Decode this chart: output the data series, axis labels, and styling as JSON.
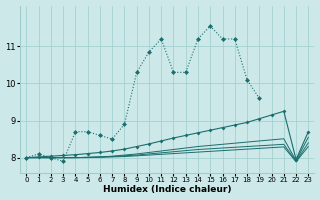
{
  "xlabel": "Humidex (Indice chaleur)",
  "background_color": "#cce8e8",
  "grid_color": "#9ecece",
  "line_color": "#1a6e6e",
  "x_values": [
    0,
    1,
    2,
    3,
    4,
    5,
    6,
    7,
    8,
    9,
    10,
    11,
    12,
    13,
    14,
    15,
    16,
    17,
    18,
    19,
    20,
    21,
    22,
    23
  ],
  "line_main": [
    8.0,
    8.1,
    8.0,
    7.9,
    8.7,
    8.7,
    8.6,
    8.5,
    8.9,
    10.3,
    10.85,
    11.2,
    10.3,
    10.3,
    11.2,
    11.55,
    11.2,
    11.2,
    10.1,
    9.6,
    null,
    null,
    null,
    null
  ],
  "line_slope": [
    8.0,
    8.02,
    8.04,
    8.06,
    8.08,
    8.11,
    8.14,
    8.18,
    8.23,
    8.3,
    8.37,
    8.45,
    8.53,
    8.6,
    8.67,
    8.74,
    8.81,
    8.88,
    8.95,
    9.05,
    9.15,
    9.25,
    7.95,
    8.7
  ],
  "line_flat1": [
    8.0,
    8.0,
    8.0,
    8.0,
    8.0,
    8.01,
    8.02,
    8.04,
    8.07,
    8.1,
    8.14,
    8.18,
    8.22,
    8.26,
    8.3,
    8.33,
    8.36,
    8.39,
    8.42,
    8.45,
    8.48,
    8.51,
    7.92,
    8.55
  ],
  "line_flat2": [
    8.0,
    8.0,
    8.0,
    8.0,
    8.0,
    8.01,
    8.02,
    8.03,
    8.05,
    8.07,
    8.1,
    8.13,
    8.16,
    8.19,
    8.22,
    8.24,
    8.26,
    8.28,
    8.3,
    8.32,
    8.34,
    8.36,
    7.9,
    8.4
  ],
  "line_flat3": [
    8.0,
    8.0,
    8.0,
    8.0,
    8.0,
    8.0,
    8.01,
    8.02,
    8.03,
    8.05,
    8.07,
    8.09,
    8.11,
    8.13,
    8.15,
    8.17,
    8.19,
    8.21,
    8.23,
    8.25,
    8.27,
    8.29,
    7.89,
    8.3
  ],
  "ylim": [
    7.6,
    12.1
  ],
  "xlim": [
    -0.5,
    23.5
  ],
  "yticks": [
    8,
    9,
    10,
    11
  ],
  "xticks": [
    0,
    1,
    2,
    3,
    4,
    5,
    6,
    7,
    8,
    9,
    10,
    11,
    12,
    13,
    14,
    15,
    16,
    17,
    18,
    19,
    20,
    21,
    22,
    23
  ]
}
